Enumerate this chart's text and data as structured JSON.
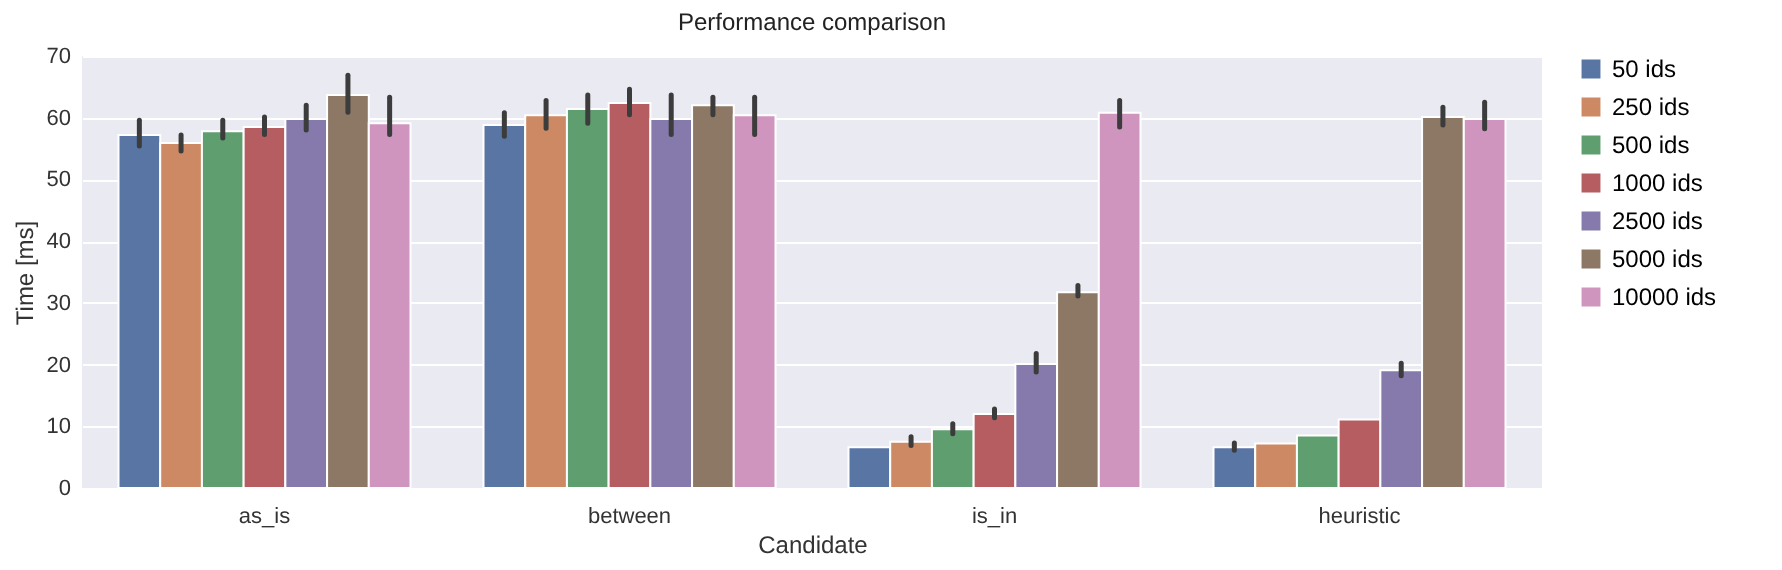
{
  "chart_data": {
    "type": "bar",
    "title": "Performance comparison",
    "xlabel": "Candidate",
    "ylabel": "Time [ms]",
    "categories": [
      "as_is",
      "between",
      "is_in",
      "heuristic"
    ],
    "series": [
      {
        "name": "50 ids",
        "color": "#5875a4",
        "values": [
          57.2,
          58.8,
          6.6,
          6.6
        ],
        "errors": [
          [
            55.4,
            59.6
          ],
          [
            57.0,
            60.8
          ],
          null,
          [
            6.1,
            7.3
          ]
        ]
      },
      {
        "name": "250 ids",
        "color": "#cc8963",
        "values": [
          55.9,
          60.4,
          7.5,
          7.2
        ],
        "errors": [
          [
            54.6,
            57.2
          ],
          [
            58.3,
            62.8
          ],
          [
            6.9,
            8.3
          ],
          null
        ]
      },
      {
        "name": "500 ids",
        "color": "#5f9e6e",
        "values": [
          57.8,
          61.4,
          9.5,
          8.5
        ],
        "errors": [
          [
            56.7,
            59.6
          ],
          [
            59.1,
            63.7
          ],
          [
            8.8,
            10.4
          ],
          null
        ]
      },
      {
        "name": "1000 ids",
        "color": "#b55d60",
        "values": [
          58.5,
          62.4,
          12.0,
          11.1
        ],
        "errors": [
          [
            57.3,
            60.1
          ],
          [
            60.5,
            64.6
          ],
          [
            11.4,
            12.8
          ],
          null
        ]
      },
      {
        "name": "2500 ids",
        "color": "#857aab",
        "values": [
          59.8,
          59.8,
          20.1,
          19.1
        ],
        "errors": [
          [
            58.0,
            62.0
          ],
          [
            57.3,
            63.7
          ],
          [
            18.8,
            21.8
          ],
          [
            18.2,
            20.2
          ]
        ]
      },
      {
        "name": "5000 ids",
        "color": "#8d7866",
        "values": [
          63.7,
          62.0,
          31.7,
          60.1
        ],
        "errors": [
          [
            60.9,
            66.9
          ],
          [
            60.5,
            63.3
          ],
          [
            31.1,
            32.8
          ],
          [
            58.8,
            61.7
          ]
        ]
      },
      {
        "name": "10000 ids",
        "color": "#d095bf",
        "values": [
          59.1,
          60.4,
          60.8,
          59.8
        ],
        "errors": [
          [
            57.3,
            63.3
          ],
          [
            57.3,
            63.3
          ],
          [
            58.5,
            62.8
          ],
          [
            58.2,
            62.5
          ]
        ]
      }
    ],
    "ylim": [
      0,
      70
    ],
    "yticks": [
      0,
      10,
      20,
      30,
      40,
      50,
      60,
      70
    ],
    "grid": "y",
    "legend": "right"
  }
}
